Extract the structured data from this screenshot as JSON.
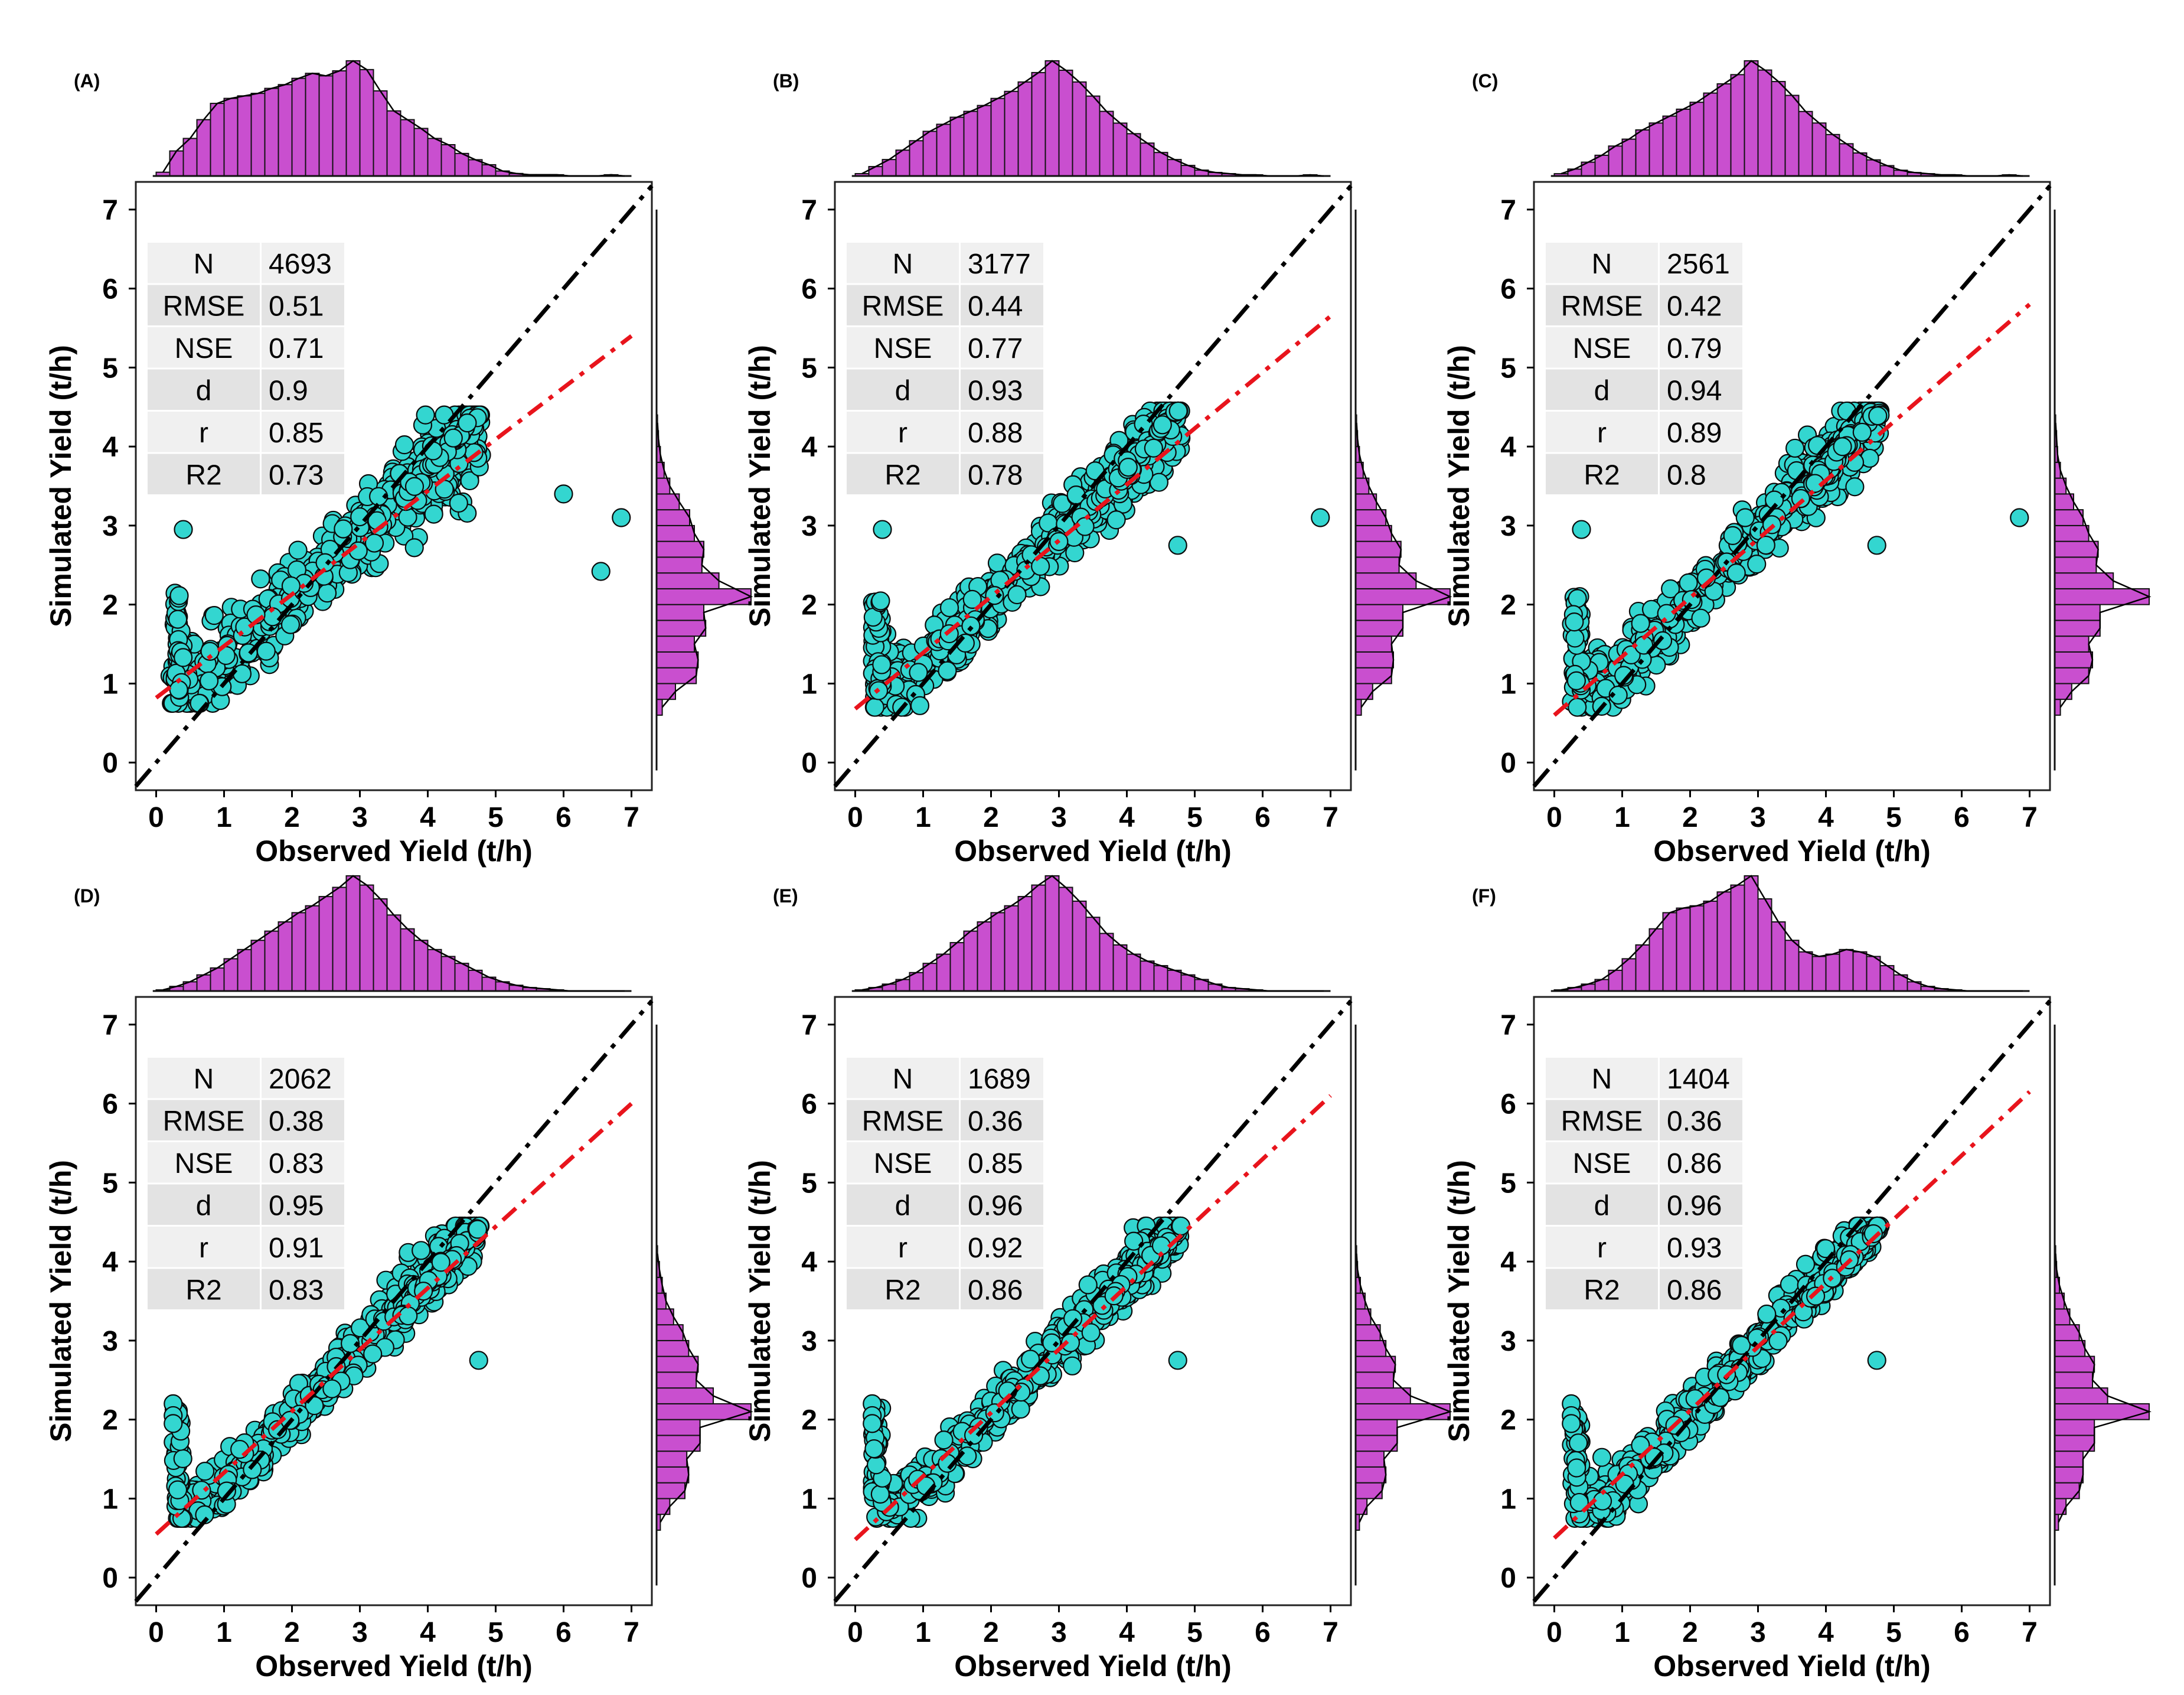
{
  "chart_data": [
    {
      "type": "scatter",
      "panel": "(A)",
      "xlabel": "Observed Yield (t/h)",
      "ylabel": "Simulated Yield (t/h)",
      "xlim": [
        -0.3,
        7.3
      ],
      "ylim": [
        -0.35,
        7.35
      ],
      "xticks": [
        "0",
        "1",
        "2",
        "3",
        "4",
        "5",
        "6",
        "7"
      ],
      "yticks": [
        "0",
        "1",
        "2",
        "3",
        "4",
        "5",
        "6",
        "7"
      ],
      "one_to_one_line": {
        "from": [
          -0.3,
          -0.3
        ],
        "to": [
          7.3,
          7.3
        ],
        "color": "#000000",
        "style": "dashdot"
      },
      "fit_line": {
        "x": [
          0,
          7
        ],
        "y": [
          0.82,
          5.4
        ],
        "color": "#e8141c",
        "style": "dashdot"
      },
      "cloud": {
        "x_range": [
          0.2,
          4.8
        ],
        "y_range": [
          0.8,
          4.4
        ],
        "lower_floor": 0.75,
        "min_spread": 0.25,
        "spread_growth": 0.18
      },
      "outliers": [
        [
          0.4,
          2.95
        ],
        [
          6.0,
          3.4
        ],
        [
          6.85,
          3.1
        ],
        [
          6.55,
          2.42
        ]
      ],
      "stats": [
        {
          "label": "N",
          "value": "4693"
        },
        {
          "label": "RMSE",
          "value": "0.51"
        },
        {
          "label": "NSE",
          "value": "0.71"
        },
        {
          "label": "d",
          "value": "0.9"
        },
        {
          "label": "r",
          "value": "0.85"
        },
        {
          "label": "R2",
          "value": "0.73"
        }
      ],
      "top_hist": {
        "bin_start": 0,
        "bin_width": 0.2,
        "counts": [
          3,
          20,
          30,
          45,
          58,
          62,
          64,
          66,
          70,
          73,
          78,
          82,
          80,
          84,
          92,
          85,
          68,
          52,
          45,
          38,
          30,
          25,
          18,
          13,
          9,
          4,
          2,
          1,
          1,
          1,
          0,
          0,
          0,
          1,
          0
        ]
      },
      "side_hist": {
        "bin_start": 0.6,
        "bin_width": 0.2,
        "counts": [
          6,
          20,
          42,
          44,
          40,
          52,
          50,
          100,
          66,
          48,
          50,
          40,
          35,
          24,
          14,
          8,
          4,
          2,
          1
        ]
      }
    },
    {
      "type": "scatter",
      "panel": "(B)",
      "xlabel": "Observed Yield (t/h)",
      "ylabel": "Simulated Yield (t/h)",
      "xlim": [
        -0.3,
        7.3
      ],
      "ylim": [
        -0.35,
        7.35
      ],
      "xticks": [
        "0",
        "1",
        "2",
        "3",
        "4",
        "5",
        "6",
        "7"
      ],
      "yticks": [
        "0",
        "1",
        "2",
        "3",
        "4",
        "5",
        "6",
        "7"
      ],
      "one_to_one_line": {
        "from": [
          -0.3,
          -0.3
        ],
        "to": [
          7.3,
          7.3
        ],
        "color": "#000000",
        "style": "dashdot"
      },
      "fit_line": {
        "x": [
          0,
          7
        ],
        "y": [
          0.68,
          5.65
        ],
        "color": "#e8141c",
        "style": "dashdot"
      },
      "cloud": {
        "x_range": [
          0.25,
          4.8
        ],
        "y_range": [
          0.75,
          4.45
        ],
        "lower_floor": 0.7,
        "min_spread": 0.2,
        "spread_growth": 0.12
      },
      "outliers": [
        [
          0.4,
          2.95
        ],
        [
          4.75,
          2.75
        ],
        [
          6.85,
          3.1
        ]
      ],
      "stats": [
        {
          "label": "N",
          "value": "3177"
        },
        {
          "label": "RMSE",
          "value": "0.44"
        },
        {
          "label": "NSE",
          "value": "0.77"
        },
        {
          "label": "d",
          "value": "0.93"
        },
        {
          "label": "r",
          "value": "0.88"
        },
        {
          "label": "R2",
          "value": "0.78"
        }
      ],
      "top_hist": {
        "bin_start": 0,
        "bin_width": 0.2,
        "counts": [
          2,
          8,
          14,
          22,
          30,
          38,
          44,
          50,
          55,
          60,
          66,
          72,
          80,
          88,
          98,
          90,
          80,
          68,
          55,
          45,
          36,
          28,
          20,
          14,
          9,
          5,
          3,
          2,
          1,
          1,
          0,
          0,
          0,
          1,
          0
        ]
      },
      "side_hist": {
        "bin_start": 0.6,
        "bin_width": 0.2,
        "counts": [
          6,
          18,
          38,
          40,
          38,
          50,
          50,
          100,
          64,
          46,
          48,
          38,
          32,
          22,
          14,
          8,
          4,
          2,
          1
        ]
      }
    },
    {
      "type": "scatter",
      "panel": "(C)",
      "xlabel": "Observed Yield (t/h)",
      "ylabel": "Simulated Yield (t/h)",
      "xlim": [
        -0.3,
        7.3
      ],
      "ylim": [
        -0.35,
        7.35
      ],
      "xticks": [
        "0",
        "1",
        "2",
        "3",
        "4",
        "5",
        "6",
        "7"
      ],
      "yticks": [
        "0",
        "1",
        "2",
        "3",
        "4",
        "5",
        "6",
        "7"
      ],
      "one_to_one_line": {
        "from": [
          -0.3,
          -0.3
        ],
        "to": [
          7.3,
          7.3
        ],
        "color": "#000000",
        "style": "dashdot"
      },
      "fit_line": {
        "x": [
          0,
          7
        ],
        "y": [
          0.6,
          5.8
        ],
        "color": "#e8141c",
        "style": "dashdot"
      },
      "cloud": {
        "x_range": [
          0.25,
          4.8
        ],
        "y_range": [
          0.75,
          4.45
        ],
        "lower_floor": 0.7,
        "min_spread": 0.18,
        "spread_growth": 0.1
      },
      "outliers": [
        [
          0.4,
          2.95
        ],
        [
          4.75,
          2.75
        ],
        [
          6.85,
          3.1
        ]
      ],
      "stats": [
        {
          "label": "N",
          "value": "2561"
        },
        {
          "label": "RMSE",
          "value": "0.42"
        },
        {
          "label": "NSE",
          "value": "0.79"
        },
        {
          "label": "d",
          "value": "0.94"
        },
        {
          "label": "r",
          "value": "0.89"
        },
        {
          "label": "R2",
          "value": "0.8"
        }
      ],
      "top_hist": {
        "bin_start": 0,
        "bin_width": 0.2,
        "counts": [
          2,
          6,
          12,
          18,
          26,
          32,
          40,
          46,
          52,
          58,
          64,
          72,
          80,
          88,
          100,
          92,
          82,
          70,
          56,
          46,
          36,
          28,
          20,
          14,
          9,
          5,
          3,
          2,
          1,
          1,
          0,
          0,
          0,
          1,
          0
        ]
      },
      "side_hist": {
        "bin_start": 0.6,
        "bin_width": 0.2,
        "counts": [
          6,
          18,
          36,
          40,
          36,
          48,
          48,
          100,
          62,
          44,
          46,
          36,
          30,
          20,
          12,
          6,
          3,
          2,
          1
        ]
      }
    },
    {
      "type": "scatter",
      "panel": "(D)",
      "xlabel": "Observed Yield (t/h)",
      "ylabel": "Simulated Yield (t/h)",
      "xlim": [
        -0.3,
        7.3
      ],
      "ylim": [
        -0.35,
        7.35
      ],
      "xticks": [
        "0",
        "1",
        "2",
        "3",
        "4",
        "5",
        "6",
        "7"
      ],
      "yticks": [
        "0",
        "1",
        "2",
        "3",
        "4",
        "5",
        "6",
        "7"
      ],
      "one_to_one_line": {
        "from": [
          -0.3,
          -0.3
        ],
        "to": [
          7.3,
          7.3
        ],
        "color": "#000000",
        "style": "dashdot"
      },
      "fit_line": {
        "x": [
          0,
          7
        ],
        "y": [
          0.55,
          6.0
        ],
        "color": "#e8141c",
        "style": "dashdot"
      },
      "cloud": {
        "x_range": [
          0.3,
          4.8
        ],
        "y_range": [
          0.8,
          4.45
        ],
        "lower_floor": 0.75,
        "min_spread": 0.15,
        "spread_growth": 0.08
      },
      "outliers": [
        [
          0.25,
          2.2
        ],
        [
          0.25,
          2.05
        ],
        [
          0.25,
          1.95
        ],
        [
          4.75,
          2.75
        ]
      ],
      "stats": [
        {
          "label": "N",
          "value": "2062"
        },
        {
          "label": "RMSE",
          "value": "0.38"
        },
        {
          "label": "NSE",
          "value": "0.83"
        },
        {
          "label": "d",
          "value": "0.95"
        },
        {
          "label": "r",
          "value": "0.91"
        },
        {
          "label": "R2",
          "value": "0.83"
        }
      ],
      "top_hist": {
        "bin_start": 0,
        "bin_width": 0.2,
        "counts": [
          1,
          4,
          8,
          14,
          20,
          28,
          36,
          44,
          52,
          60,
          68,
          74,
          82,
          90,
          100,
          92,
          80,
          66,
          54,
          44,
          36,
          30,
          24,
          18,
          12,
          8,
          5,
          3,
          2,
          1,
          0,
          0,
          0,
          0,
          0
        ]
      },
      "side_hist": {
        "bin_start": 0.6,
        "bin_width": 0.2,
        "counts": [
          4,
          14,
          30,
          34,
          32,
          46,
          46,
          100,
          60,
          42,
          44,
          34,
          28,
          18,
          10,
          6,
          3,
          1
        ]
      }
    },
    {
      "type": "scatter",
      "panel": "(E)",
      "xlabel": "Observed Yield (t/h)",
      "ylabel": "Simulated Yield (t/h)",
      "xlim": [
        -0.3,
        7.3
      ],
      "ylim": [
        -0.35,
        7.35
      ],
      "xticks": [
        "0",
        "1",
        "2",
        "3",
        "4",
        "5",
        "6",
        "7"
      ],
      "yticks": [
        "0",
        "1",
        "2",
        "3",
        "4",
        "5",
        "6",
        "7"
      ],
      "one_to_one_line": {
        "from": [
          -0.3,
          -0.3
        ],
        "to": [
          7.3,
          7.3
        ],
        "color": "#000000",
        "style": "dashdot"
      },
      "fit_line": {
        "x": [
          0,
          7
        ],
        "y": [
          0.48,
          6.1
        ],
        "color": "#e8141c",
        "style": "dashdot"
      },
      "cloud": {
        "x_range": [
          0.3,
          4.8
        ],
        "y_range": [
          0.8,
          4.45
        ],
        "lower_floor": 0.75,
        "min_spread": 0.15,
        "spread_growth": 0.06
      },
      "outliers": [
        [
          0.25,
          2.2
        ],
        [
          0.25,
          2.05
        ],
        [
          0.25,
          1.95
        ],
        [
          4.75,
          2.75
        ]
      ],
      "stats": [
        {
          "label": "N",
          "value": "1689"
        },
        {
          "label": "RMSE",
          "value": "0.36"
        },
        {
          "label": "NSE",
          "value": "0.85"
        },
        {
          "label": "d",
          "value": "0.96"
        },
        {
          "label": "r",
          "value": "0.92"
        },
        {
          "label": "R2",
          "value": "0.86"
        }
      ],
      "top_hist": {
        "bin_start": 0,
        "bin_width": 0.2,
        "counts": [
          1,
          3,
          6,
          10,
          16,
          24,
          32,
          42,
          52,
          60,
          68,
          74,
          82,
          92,
          100,
          90,
          78,
          64,
          50,
          40,
          32,
          26,
          22,
          18,
          14,
          10,
          6,
          3,
          2,
          1,
          0,
          0,
          0,
          0,
          0
        ]
      },
      "side_hist": {
        "bin_start": 0.6,
        "bin_width": 0.2,
        "counts": [
          4,
          12,
          28,
          32,
          30,
          44,
          44,
          100,
          58,
          40,
          42,
          32,
          26,
          16,
          10,
          5,
          2,
          1
        ]
      }
    },
    {
      "type": "scatter",
      "panel": "(F)",
      "xlabel": "Observed Yield (t/h)",
      "ylabel": "Simulated Yield (t/h)",
      "xlim": [
        -0.3,
        7.3
      ],
      "ylim": [
        -0.35,
        7.35
      ],
      "xticks": [
        "0",
        "1",
        "2",
        "3",
        "4",
        "5",
        "6",
        "7"
      ],
      "yticks": [
        "0",
        "1",
        "2",
        "3",
        "4",
        "5",
        "6",
        "7"
      ],
      "one_to_one_line": {
        "from": [
          -0.3,
          -0.3
        ],
        "to": [
          7.3,
          7.3
        ],
        "color": "#000000",
        "style": "dashdot"
      },
      "fit_line": {
        "x": [
          0,
          7
        ],
        "y": [
          0.5,
          6.15
        ],
        "color": "#e8141c",
        "style": "dashdot"
      },
      "cloud": {
        "x_range": [
          0.3,
          4.8
        ],
        "y_range": [
          0.8,
          4.45
        ],
        "lower_floor": 0.75,
        "min_spread": 0.15,
        "spread_growth": 0.05
      },
      "outliers": [
        [
          0.25,
          2.2
        ],
        [
          0.25,
          2.05
        ],
        [
          0.25,
          1.95
        ],
        [
          4.75,
          2.75
        ]
      ],
      "stats": [
        {
          "label": "N",
          "value": "1404"
        },
        {
          "label": "RMSE",
          "value": "0.36"
        },
        {
          "label": "NSE",
          "value": "0.86"
        },
        {
          "label": "d",
          "value": "0.96"
        },
        {
          "label": "r",
          "value": "0.93"
        },
        {
          "label": "R2",
          "value": "0.86"
        }
      ],
      "top_hist": {
        "bin_start": 0,
        "bin_width": 0.2,
        "counts": [
          1,
          3,
          6,
          10,
          18,
          28,
          40,
          54,
          68,
          72,
          74,
          78,
          86,
          92,
          100,
          80,
          60,
          44,
          34,
          30,
          32,
          36,
          34,
          30,
          22,
          14,
          8,
          4,
          2,
          1,
          0,
          0,
          0,
          0,
          0
        ]
      },
      "side_hist": {
        "bin_start": 0.6,
        "bin_width": 0.2,
        "counts": [
          4,
          12,
          26,
          30,
          30,
          42,
          42,
          100,
          56,
          40,
          42,
          32,
          26,
          16,
          10,
          5,
          2,
          1
        ]
      }
    }
  ]
}
